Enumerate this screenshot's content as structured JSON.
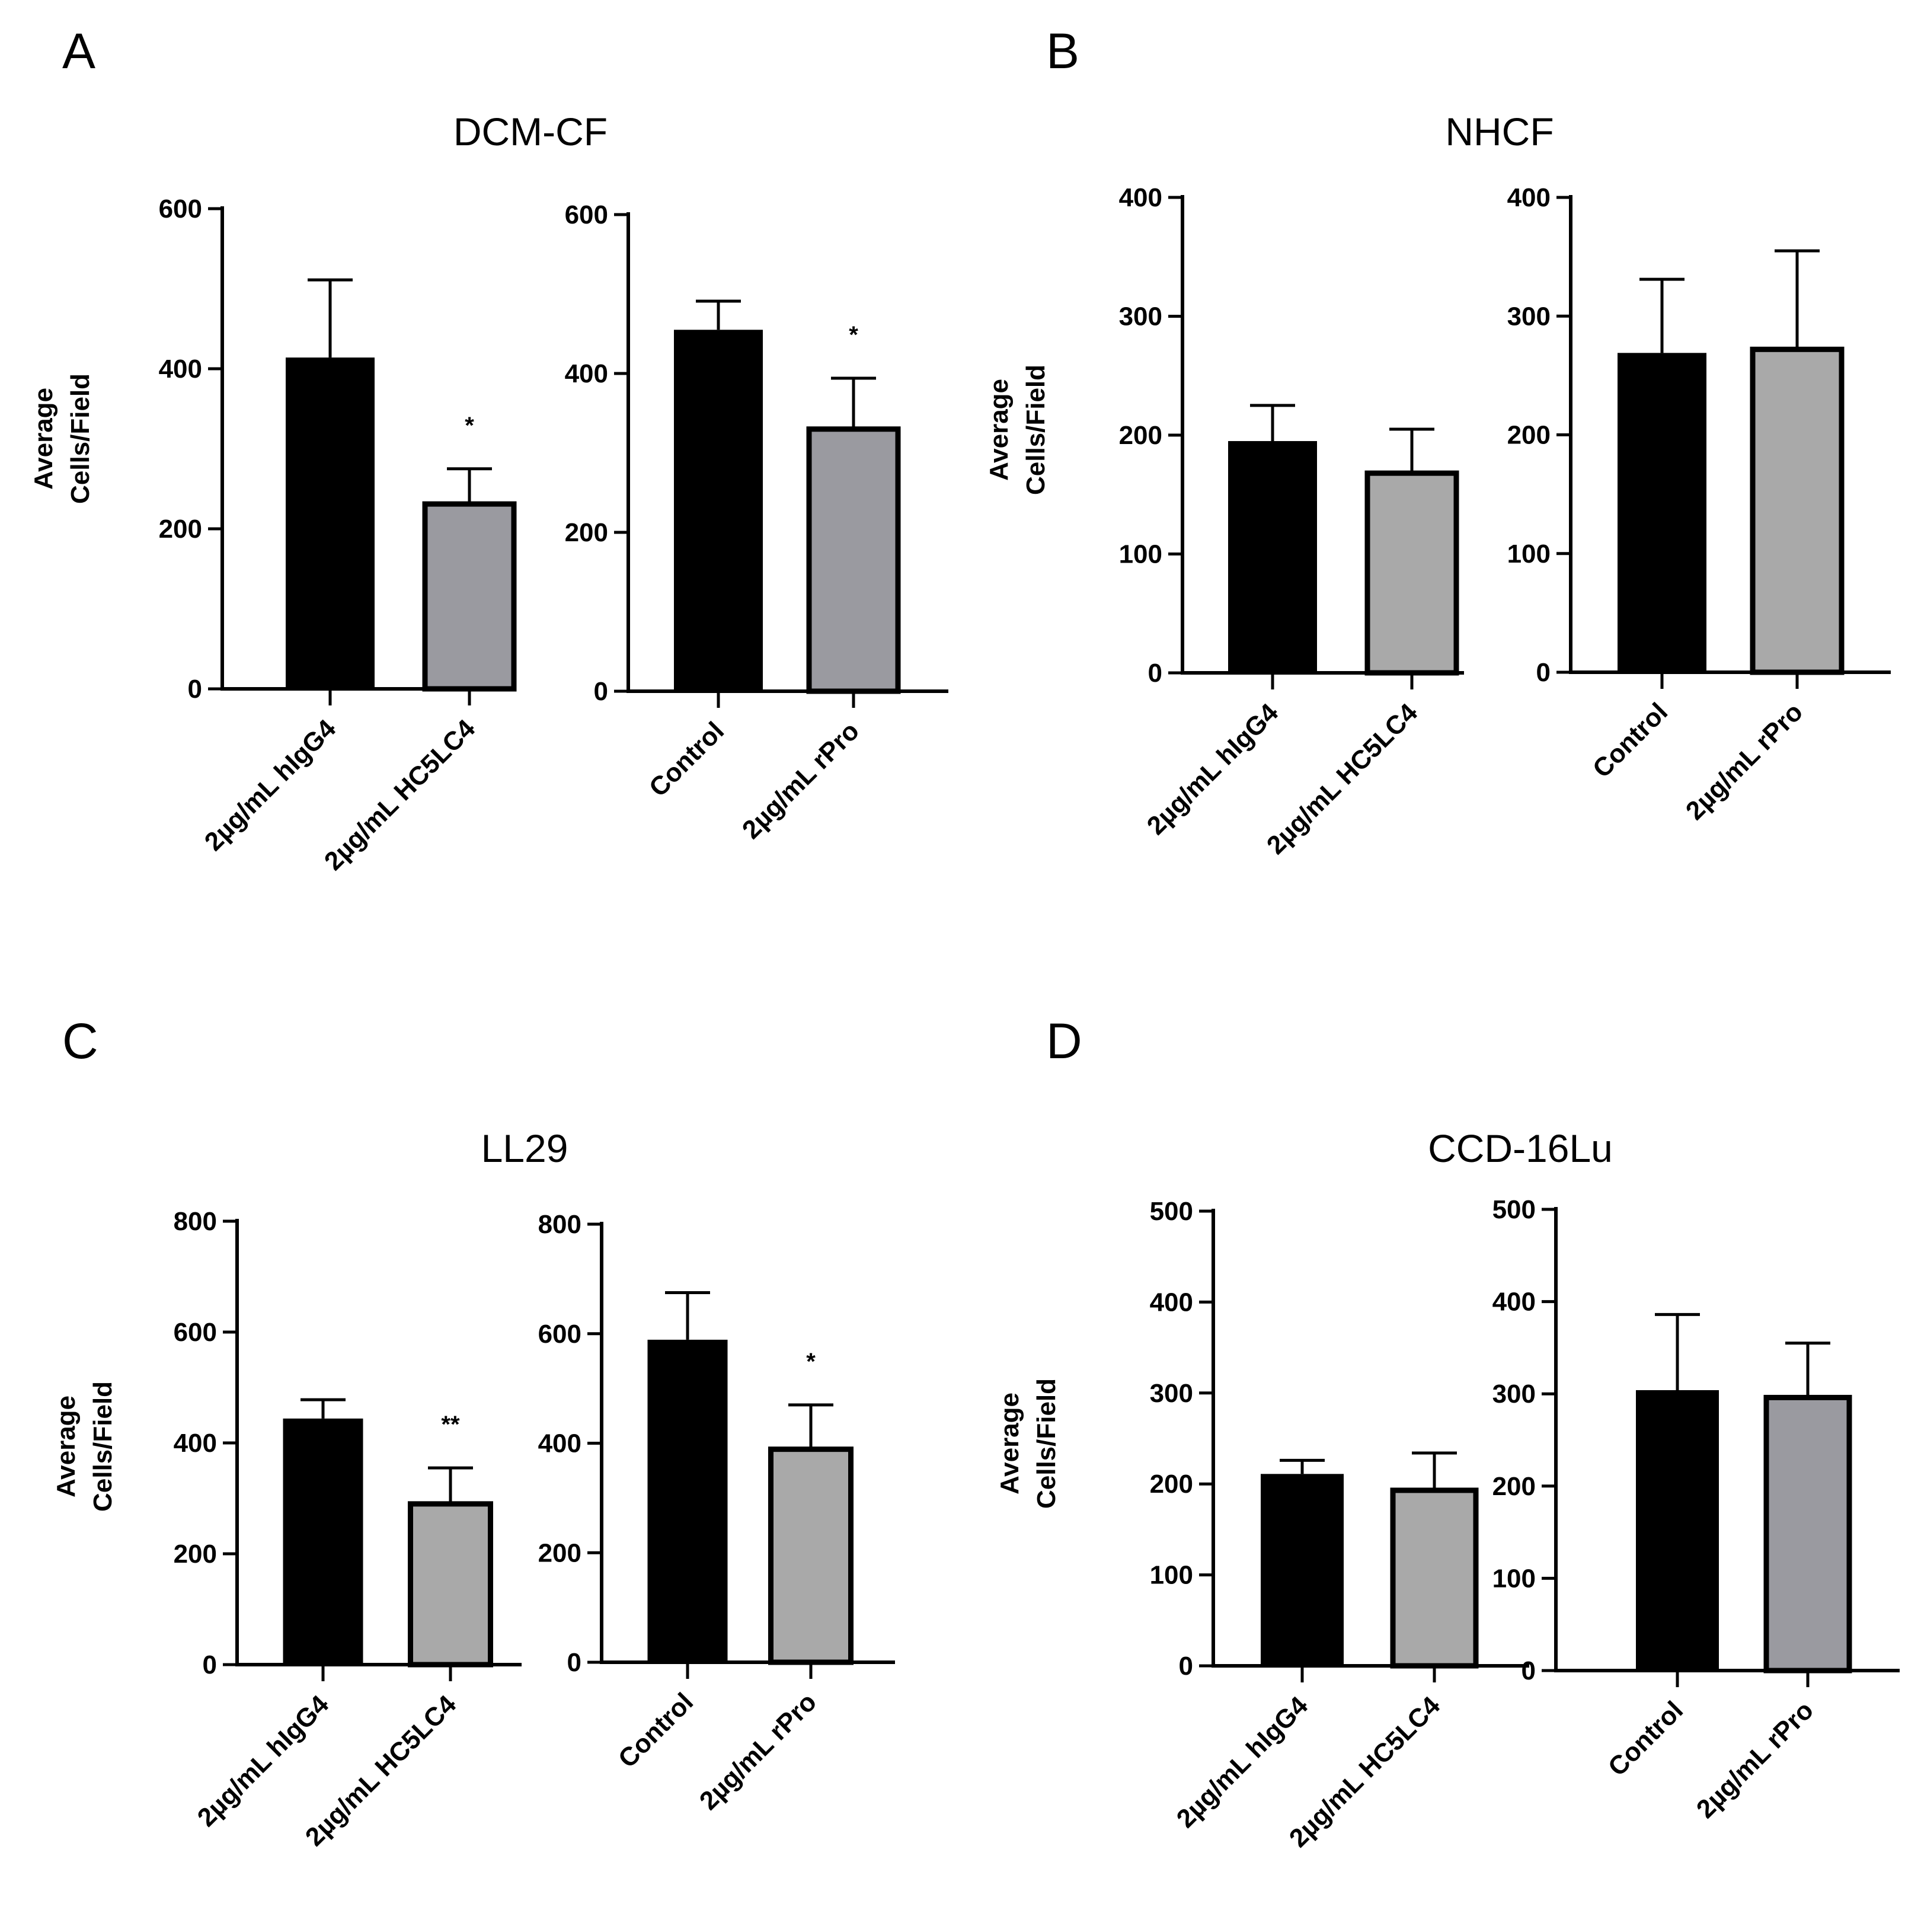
{
  "chart_data": [
    {
      "panel": "A",
      "title": "DCM-CF",
      "ylabel": [
        "Average",
        "Cells/Field"
      ],
      "type": "bar",
      "subplots": [
        {
          "categories": [
            "2µg/mL hIgG4",
            "2µg/mL HC5LC4"
          ],
          "values": [
            414,
            231
          ],
          "errors": [
            97,
            44
          ],
          "colors": [
            "#000000",
            "#9a9aa0"
          ],
          "significance": [
            "",
            "*"
          ],
          "ylim": [
            0,
            600
          ],
          "yticks": [
            "0",
            "200",
            "400",
            "600"
          ]
        },
        {
          "categories": [
            "Control",
            "2µg/mL rPro"
          ],
          "values": [
            455,
            330
          ],
          "errors": [
            36,
            64
          ],
          "colors": [
            "#000000",
            "#9a9aa0"
          ],
          "significance": [
            "",
            "*"
          ],
          "ylim": [
            0,
            600
          ],
          "yticks": [
            "0",
            "200",
            "400",
            "600"
          ]
        }
      ]
    },
    {
      "panel": "B",
      "title": "NHCF",
      "ylabel": [
        "Average",
        "Cells/Field"
      ],
      "type": "bar",
      "subplots": [
        {
          "categories": [
            "2µg/mL hIgG4",
            "2µg/mL HC5LC4"
          ],
          "values": [
            195,
            168
          ],
          "errors": [
            30,
            37
          ],
          "colors": [
            "#000000",
            "#a9a9a9"
          ],
          "significance": [
            "",
            ""
          ],
          "ylim": [
            0,
            400
          ],
          "yticks": [
            "0",
            "100",
            "200",
            "300",
            "400"
          ]
        },
        {
          "categories": [
            "Control",
            "2µg/mL rPro"
          ],
          "values": [
            269,
            272
          ],
          "errors": [
            62,
            83
          ],
          "colors": [
            "#000000",
            "#a9a9a9"
          ],
          "significance": [
            "",
            ""
          ],
          "ylim": [
            0,
            400
          ],
          "yticks": [
            "0",
            "100",
            "200",
            "300",
            "400"
          ]
        }
      ]
    },
    {
      "panel": "C",
      "title": "LL29",
      "ylabel": [
        "Average",
        "Cells/Field"
      ],
      "type": "bar",
      "subplots": [
        {
          "categories": [
            "2µg/mL hIgG4",
            "2µg/mL HC5LC4"
          ],
          "values": [
            444,
            290
          ],
          "errors": [
            34,
            65
          ],
          "colors": [
            "#000000",
            "#a9a9a9"
          ],
          "significance": [
            "",
            "**"
          ],
          "ylim": [
            0,
            800
          ],
          "yticks": [
            "0",
            "200",
            "400",
            "600",
            "800"
          ]
        },
        {
          "categories": [
            "Control",
            "2µg/mL rPro"
          ],
          "values": [
            589,
            389
          ],
          "errors": [
            86,
            81
          ],
          "colors": [
            "#000000",
            "#a9a9a9"
          ],
          "significance": [
            "",
            "*"
          ],
          "ylim": [
            0,
            800
          ],
          "yticks": [
            "0",
            "200",
            "400",
            "600",
            "800"
          ]
        }
      ]
    },
    {
      "panel": "D",
      "title": "CCD-16Lu",
      "ylabel": [
        "Average",
        "Cells/Field"
      ],
      "type": "bar",
      "subplots": [
        {
          "categories": [
            "2µg/mL hIgG4",
            "2µg/mL HC5LC4"
          ],
          "values": [
            211,
            193
          ],
          "errors": [
            15,
            41
          ],
          "colors": [
            "#000000",
            "#a9a9a9"
          ],
          "significance": [
            "",
            ""
          ],
          "ylim": [
            0,
            500
          ],
          "yticks": [
            "0",
            "100",
            "200",
            "300",
            "400",
            "500"
          ]
        },
        {
          "categories": [
            "Control",
            "2µg/mL rPro"
          ],
          "values": [
            304,
            296
          ],
          "errors": [
            82,
            59
          ],
          "colors": [
            "#000000",
            "#9a9aa0"
          ],
          "significance": [
            "",
            ""
          ],
          "ylim": [
            0,
            500
          ],
          "yticks": [
            "0",
            "100",
            "200",
            "300",
            "400",
            "500"
          ]
        }
      ]
    }
  ]
}
